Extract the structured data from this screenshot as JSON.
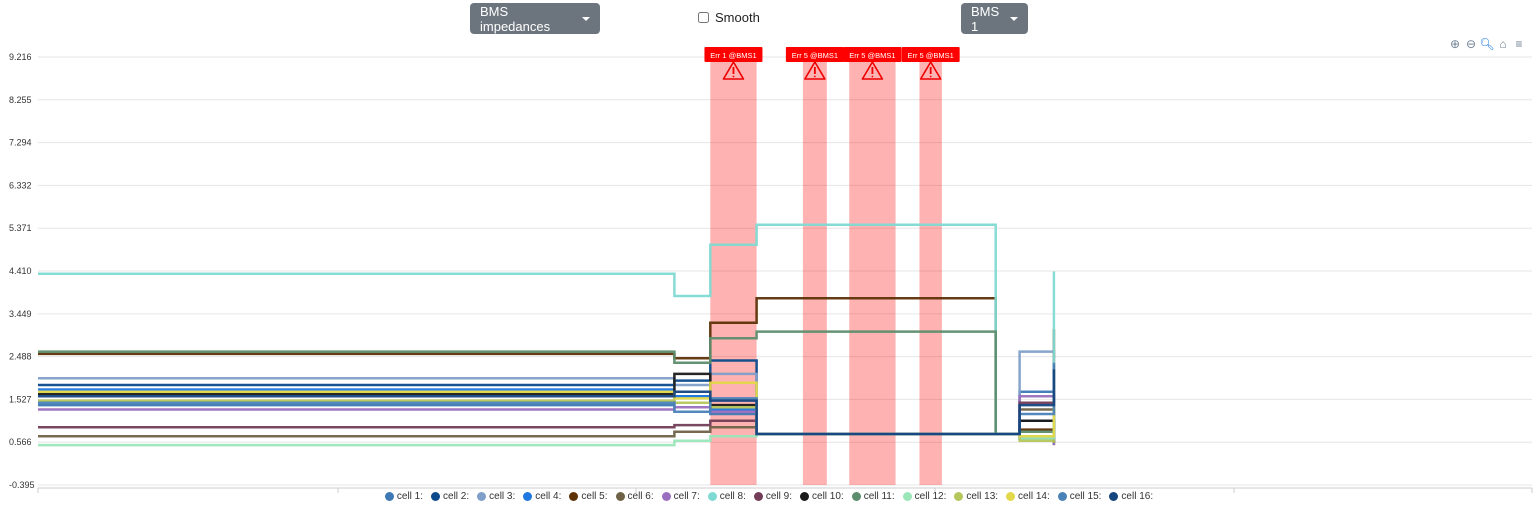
{
  "header": {
    "metric_button": "BMS impedances",
    "smooth_label": "Smooth",
    "bms_button": "BMS 1"
  },
  "toolbar": {
    "zoom_in_icon": "zoom-in-icon",
    "zoom_out_icon": "zoom-out-icon",
    "selection_zoom_icon": "selection-zoom-icon",
    "reset_icon": "home-icon",
    "menu_icon": "menu-icon"
  },
  "chart_data": {
    "type": "line",
    "step": true,
    "ylim": [
      -0.395,
      9.216
    ],
    "yticks": [
      "9.216",
      "8.255",
      "7.294",
      "6.332",
      "5.371",
      "4.410",
      "3.449",
      "2.488",
      "1.527",
      "0.566",
      "-0.395"
    ],
    "xlim": [
      0,
      100
    ],
    "grid": true,
    "legend_position": "bottom",
    "annotations": [
      {
        "label": "Err 1 @BMS1",
        "x_start": 45.0,
        "x_end": 48.1,
        "color": "#ff0000"
      },
      {
        "label": "Err 5 @BMS1",
        "x_start": 51.2,
        "x_end": 52.8,
        "color": "#ff0000"
      },
      {
        "label": "Err 5 @BMS1",
        "x_start": 54.3,
        "x_end": 57.4,
        "color": "#ff0000"
      },
      {
        "label": "Err 5 @BMS1",
        "x_start": 59.0,
        "x_end": 60.5,
        "color": "#ff0000"
      }
    ],
    "x_breaks": [
      0,
      39.5,
      42.6,
      45.0,
      48.1,
      64.1,
      65.7,
      68.0
    ],
    "series": [
      {
        "name": "cell 1:",
        "color": "#3d79b4",
        "values": [
          1.4,
          1.4,
          1.6,
          1.2,
          0.75,
          0.75,
          1.7,
          1.7
        ]
      },
      {
        "name": "cell 2:",
        "color": "#0b4a8c",
        "values": [
          1.85,
          1.85,
          1.95,
          2.4,
          0.75,
          0.75,
          1.05,
          0.75
        ]
      },
      {
        "name": "cell 3:",
        "color": "#7f9fc9",
        "values": [
          2.0,
          2.0,
          1.85,
          2.1,
          0.75,
          0.75,
          2.6,
          2.45
        ]
      },
      {
        "name": "cell 4:",
        "color": "#1f78e0",
        "values": [
          1.75,
          1.75,
          1.6,
          1.3,
          0.75,
          0.75,
          0.65,
          0.75
        ]
      },
      {
        "name": "cell 5:",
        "color": "#5e3207",
        "values": [
          2.55,
          2.55,
          2.45,
          3.25,
          3.8,
          0.75,
          0.85,
          3.1
        ]
      },
      {
        "name": "cell 6:",
        "color": "#6f6347",
        "values": [
          0.7,
          0.7,
          0.8,
          0.9,
          0.75,
          0.75,
          1.3,
          0.5
        ]
      },
      {
        "name": "cell 7:",
        "color": "#9a6fbe",
        "values": [
          1.3,
          1.3,
          1.35,
          1.25,
          0.75,
          0.75,
          1.6,
          0.5
        ]
      },
      {
        "name": "cell 8:",
        "color": "#7fdad3",
        "values": [
          4.35,
          4.35,
          3.85,
          5.0,
          5.45,
          0.75,
          0.7,
          4.4
        ]
      },
      {
        "name": "cell 9:",
        "color": "#733d57",
        "values": [
          0.9,
          0.9,
          0.95,
          1.05,
          0.75,
          0.75,
          1.45,
          1.65
        ]
      },
      {
        "name": "cell 10:",
        "color": "#1a1a1a",
        "values": [
          1.65,
          1.65,
          2.1,
          1.4,
          0.75,
          0.75,
          1.05,
          0.55
        ]
      },
      {
        "name": "cell 11:",
        "color": "#5c8d6d",
        "values": [
          2.6,
          2.6,
          2.35,
          2.9,
          3.05,
          0.75,
          0.8,
          2.3
        ]
      },
      {
        "name": "cell 12:",
        "color": "#9ae6b8",
        "values": [
          0.5,
          0.5,
          0.6,
          0.7,
          0.75,
          0.75,
          0.65,
          1.2
        ]
      },
      {
        "name": "cell 13:",
        "color": "#b5c65c",
        "values": [
          1.5,
          1.5,
          1.45,
          1.35,
          0.75,
          0.75,
          0.6,
          0.55
        ]
      },
      {
        "name": "cell 14:",
        "color": "#e3d849",
        "values": [
          1.7,
          1.7,
          1.55,
          1.9,
          0.75,
          0.75,
          0.7,
          1.4
        ]
      },
      {
        "name": "cell 15:",
        "color": "#4a82b8",
        "values": [
          1.45,
          1.45,
          1.25,
          1.55,
          0.75,
          0.75,
          1.2,
          2.35
        ]
      },
      {
        "name": "cell 16:",
        "color": "#15457f",
        "values": [
          1.6,
          1.6,
          1.7,
          1.5,
          0.75,
          0.75,
          1.4,
          2.2
        ]
      }
    ]
  }
}
